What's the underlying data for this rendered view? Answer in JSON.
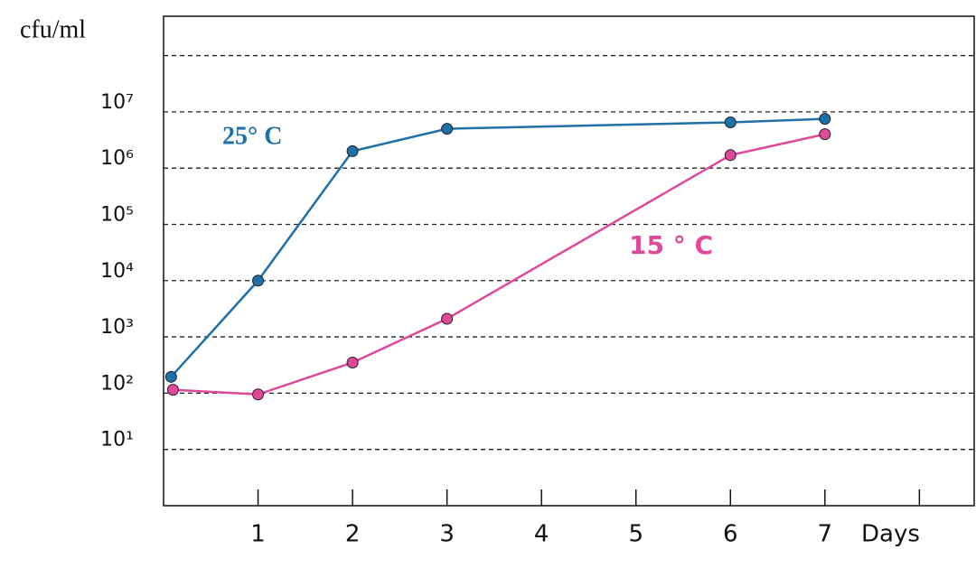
{
  "chart_data": {
    "type": "line",
    "y_label": "cfu/ml",
    "x_label": "Days",
    "log_scale_y": true,
    "grid": true,
    "xlim": [
      0,
      8.58
    ],
    "xticks": [
      1,
      2,
      3,
      4,
      5,
      6,
      7,
      {
        "value": 8,
        "label": null
      }
    ],
    "ylim": [
      1,
      500000000
    ],
    "yticks": [
      {
        "value": 10,
        "label": "10¹"
      },
      {
        "value": 100,
        "label": "10²"
      },
      {
        "value": 1000,
        "label": "10³"
      },
      {
        "value": 10000,
        "label": "10⁴"
      },
      {
        "value": 100000,
        "label": "10⁵"
      },
      {
        "value": 1000000,
        "label": "10⁶"
      },
      {
        "value": 10000000,
        "label": "10⁷"
      },
      {
        "value": 100000000,
        "label": null
      }
    ],
    "series": [
      {
        "name": "25° C",
        "color": "#1f6fa8",
        "x": [
          0.08,
          1,
          2,
          3,
          6,
          7
        ],
        "values": [
          195,
          10000,
          2000000,
          5000000,
          6500000,
          7500000
        ]
      },
      {
        "name": "15 ° C",
        "color": "#e0489a",
        "x": [
          0.1,
          1,
          2,
          3,
          6,
          7
        ],
        "values": [
          115,
          95,
          350,
          2100,
          1700000,
          4000000
        ]
      }
    ]
  }
}
